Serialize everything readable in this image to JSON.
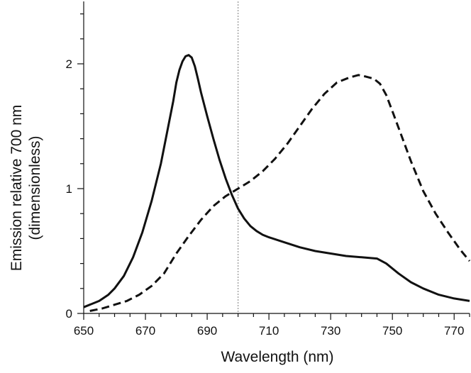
{
  "chart_data": {
    "type": "line",
    "xlabel": "Wavelength (nm)",
    "ylabel_line1": "Emission relative 700 nm",
    "ylabel_line2": "(dimensionless)",
    "xlim": [
      650,
      775
    ],
    "ylim": [
      0,
      2.5
    ],
    "x_ticks": [
      650,
      670,
      690,
      710,
      730,
      750,
      770
    ],
    "x_minor_step": 5,
    "y_ticks": [
      0,
      1,
      2
    ],
    "y_minor_step": 0.2,
    "reference_line_x": 700,
    "series": [
      {
        "style": "solid",
        "x": [
          650,
          655,
          658,
          660,
          663,
          666,
          669,
          672,
          675,
          677,
          679,
          680,
          681,
          682,
          683,
          684,
          685,
          686,
          687,
          688,
          690,
          692,
          694,
          696,
          698,
          700,
          702,
          704,
          706,
          708,
          710,
          715,
          720,
          725,
          730,
          735,
          740,
          745,
          748,
          752,
          756,
          760,
          765,
          770,
          775
        ],
        "y": [
          0.05,
          0.1,
          0.15,
          0.2,
          0.3,
          0.45,
          0.65,
          0.9,
          1.2,
          1.45,
          1.7,
          1.85,
          1.95,
          2.02,
          2.06,
          2.07,
          2.05,
          1.98,
          1.88,
          1.77,
          1.58,
          1.4,
          1.23,
          1.08,
          0.95,
          0.84,
          0.76,
          0.7,
          0.66,
          0.63,
          0.61,
          0.57,
          0.53,
          0.5,
          0.48,
          0.46,
          0.45,
          0.44,
          0.4,
          0.32,
          0.25,
          0.2,
          0.15,
          0.12,
          0.1
        ]
      },
      {
        "style": "dashed",
        "x": [
          652,
          656,
          660,
          664,
          668,
          672,
          676,
          680,
          684,
          688,
          692,
          696,
          700,
          704,
          708,
          712,
          716,
          720,
          724,
          728,
          732,
          736,
          739,
          741,
          744,
          746,
          748,
          750,
          753,
          756,
          760,
          764,
          768,
          772,
          775
        ],
        "y": [
          0.02,
          0.04,
          0.07,
          0.1,
          0.15,
          0.22,
          0.32,
          0.48,
          0.62,
          0.75,
          0.86,
          0.94,
          1.0,
          1.06,
          1.14,
          1.24,
          1.36,
          1.5,
          1.64,
          1.76,
          1.85,
          1.89,
          1.91,
          1.9,
          1.88,
          1.84,
          1.75,
          1.62,
          1.42,
          1.22,
          0.98,
          0.8,
          0.65,
          0.51,
          0.42
        ]
      }
    ]
  }
}
